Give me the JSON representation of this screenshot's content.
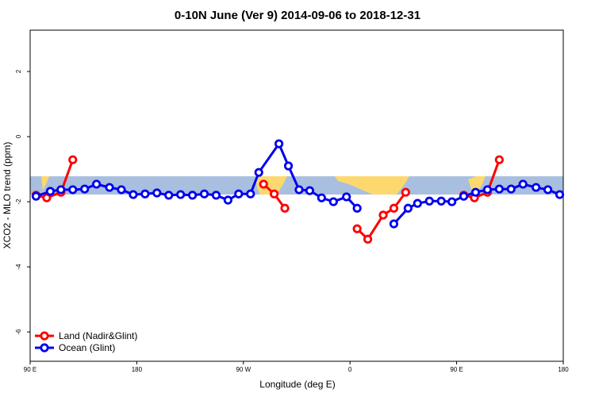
{
  "chart_data": {
    "type": "line",
    "title": "0-10N June (Ver 9)   2014-09-06 to 2018-12-31",
    "x_label": "Longitude (deg E)",
    "y_label": "XCO2 - MLO trend (ppm)",
    "xlim": [
      90,
      540
    ],
    "xticks": [
      {
        "value": 90,
        "label": "90 E"
      },
      180,
      {
        "value": 270,
        "label": "90 W"
      },
      {
        "value": 360,
        "label": "0"
      },
      {
        "value": 450,
        "label": "90 E"
      },
      {
        "value": 540,
        "label": "180"
      }
    ],
    "ylim": [
      -6.9,
      3.27
    ],
    "yticks": [
      -6,
      -4,
      -2,
      0,
      2
    ],
    "legend": "bottom-left",
    "series": [
      {
        "name": "Land (Nadir&Glint)",
        "color": "#ff0000",
        "x": [
          95,
          104,
          116,
          126,
          200,
          287,
          296,
          305,
          330,
          366,
          375,
          388,
          397,
          407,
          430,
          456,
          465,
          476,
          486
        ],
        "values": [
          -1.8,
          -1.88,
          -1.71,
          -0.71,
          null,
          -1.46,
          -1.76,
          -2.2,
          null,
          -2.83,
          -3.15,
          -2.41,
          -2.2,
          -1.71,
          null,
          -1.8,
          -1.88,
          -1.71,
          -0.71
        ]
      },
      {
        "name": "Ocean (Glint)",
        "color": "#0000ee",
        "x": [
          95,
          107,
          116,
          126,
          136,
          146,
          157,
          167,
          177,
          187,
          197,
          207,
          217,
          227,
          237,
          247,
          257,
          266,
          276,
          283,
          300,
          308,
          317,
          326,
          336,
          346,
          357,
          366,
          380,
          397,
          409,
          417,
          427,
          437,
          446,
          456,
          466,
          476,
          486,
          496,
          506,
          517,
          527,
          537
        ],
        "values": [
          -1.83,
          -1.68,
          -1.63,
          -1.63,
          -1.61,
          -1.46,
          -1.56,
          -1.63,
          -1.78,
          -1.76,
          -1.73,
          -1.8,
          -1.78,
          -1.8,
          -1.76,
          -1.8,
          -1.95,
          -1.76,
          -1.76,
          -1.1,
          -0.22,
          -0.9,
          -1.63,
          -1.66,
          -1.88,
          -2.0,
          -1.85,
          -2.2,
          null,
          -2.68,
          -2.2,
          -2.05,
          -1.98,
          -1.98,
          -2.0,
          -1.83,
          -1.71,
          -1.63,
          -1.61,
          -1.61,
          -1.46,
          -1.56,
          -1.63,
          -1.78
        ]
      }
    ]
  }
}
